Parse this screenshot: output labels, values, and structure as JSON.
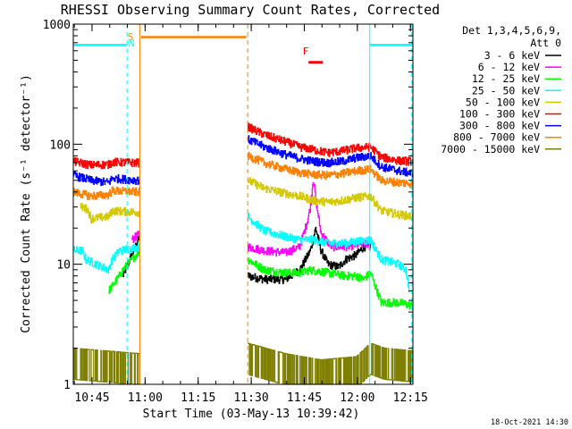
{
  "chart_data": {
    "type": "line",
    "title": "RHESSI Observing Summary Count Rates, Corrected",
    "xlabel": "Start Time (03-May-13 10:39:42)",
    "ylabel": "Corrected Count Rate (s⁻¹ detector⁻¹)",
    "yscale": "log",
    "ylim": [
      1,
      1000
    ],
    "xlim_minutes": [
      0,
      96
    ],
    "x_ticks": [
      {
        "t": 5.3,
        "label": "10:45"
      },
      {
        "t": 20.3,
        "label": "11:00"
      },
      {
        "t": 35.3,
        "label": "11:15"
      },
      {
        "t": 50.3,
        "label": "11:30"
      },
      {
        "t": 65.3,
        "label": "11:45"
      },
      {
        "t": 80.3,
        "label": "12:00"
      },
      {
        "t": 95.3,
        "label": "12:15"
      }
    ],
    "y_ticks": [
      {
        "v": 1,
        "label": "1"
      },
      {
        "v": 10,
        "label": "10"
      },
      {
        "v": 100,
        "label": "100"
      },
      {
        "v": 1000,
        "label": "1000"
      }
    ],
    "legend": {
      "placement": "right",
      "header": [
        "Det 1,3,4,5,6,9,",
        "Att 0"
      ],
      "entries": [
        {
          "label": "3 - 6 keV",
          "color": "#000000"
        },
        {
          "label": "6 - 12 keV",
          "color": "#ff00ff"
        },
        {
          "label": "12 - 25 keV",
          "color": "#00ff00"
        },
        {
          "label": "25 - 50 keV",
          "color": "#00ffff"
        },
        {
          "label": "50 - 100 keV",
          "color": "#d4c800"
        },
        {
          "label": "100 - 300 keV",
          "color": "#ff0000"
        },
        {
          "label": "300 - 800 keV",
          "color": "#0000ff"
        },
        {
          "label": "800 - 7000 keV",
          "color": "#ff8000"
        },
        {
          "label": "7000 - 15000 keV",
          "color": "#808000"
        }
      ]
    },
    "annotations": {
      "saa_label": "S",
      "night_label": "N",
      "flare_label": "F",
      "timestamp": "18-Oct-2021 14:30"
    },
    "intervals": {
      "night": [
        [
          0,
          15.2
        ],
        [
          83.8,
          96
        ]
      ],
      "saa": [
        [
          18.8,
          49.3
        ]
      ],
      "flare": [
        [
          66.5,
          70.5
        ]
      ],
      "gaps": [
        [
          18.8,
          49.3
        ]
      ],
      "segments": [
        [
          0,
          18.8
        ],
        [
          49.3,
          96
        ]
      ]
    },
    "series": [
      {
        "name": "3 - 6 keV",
        "color": "#000000",
        "profile": [
          [
            14,
            8
          ],
          [
            17,
            13
          ],
          [
            18.8,
            17
          ],
          [
            49.3,
            8
          ],
          [
            54,
            7.5
          ],
          [
            60,
            7.5
          ],
          [
            64,
            9
          ],
          [
            67,
            13
          ],
          [
            68.5,
            20
          ],
          [
            70,
            13
          ],
          [
            72,
            10
          ],
          [
            75,
            9.5
          ],
          [
            77,
            11
          ],
          [
            80,
            12
          ],
          [
            82,
            14
          ],
          [
            84,
            14
          ]
        ]
      },
      {
        "name": "6 - 12 keV",
        "color": "#ff00ff",
        "profile": [
          [
            16.5,
            16
          ],
          [
            18.8,
            18
          ],
          [
            49.3,
            14
          ],
          [
            54,
            13
          ],
          [
            60,
            12.5
          ],
          [
            64,
            14
          ],
          [
            66,
            22
          ],
          [
            67,
            30
          ],
          [
            67.8,
            52
          ],
          [
            68.5,
            35
          ],
          [
            70,
            18
          ],
          [
            73,
            14
          ],
          [
            77,
            14
          ],
          [
            80,
            14.5
          ],
          [
            84,
            15
          ]
        ]
      },
      {
        "name": "12 - 25 keV",
        "color": "#00ff00",
        "profile": [
          [
            10,
            6
          ],
          [
            13,
            8
          ],
          [
            14,
            9
          ],
          [
            18.8,
            13
          ],
          [
            49.3,
            11
          ],
          [
            54,
            9
          ],
          [
            60,
            8.5
          ],
          [
            64,
            8.5
          ],
          [
            67,
            9
          ],
          [
            72,
            8.5
          ],
          [
            77,
            8
          ],
          [
            80,
            8
          ],
          [
            82,
            7.5
          ],
          [
            84,
            8.5
          ],
          [
            87,
            4.8
          ],
          [
            92,
            4.8
          ],
          [
            96,
            4.5
          ]
        ]
      },
      {
        "name": "25 - 50 keV",
        "color": "#00ffff",
        "profile": [
          [
            0,
            13
          ],
          [
            2.5,
            13
          ],
          [
            3.5,
            11
          ],
          [
            10,
            9
          ],
          [
            11,
            11
          ],
          [
            13,
            13
          ],
          [
            18.8,
            14
          ],
          [
            49.3,
            25
          ],
          [
            54,
            19
          ],
          [
            60,
            17
          ],
          [
            64,
            16
          ],
          [
            68,
            16
          ],
          [
            72,
            15
          ],
          [
            77,
            15
          ],
          [
            80,
            15.5
          ],
          [
            84,
            16
          ],
          [
            87,
            11
          ],
          [
            92,
            10
          ],
          [
            94,
            9
          ],
          [
            95,
            6
          ]
        ]
      },
      {
        "name": "50 - 100 keV",
        "color": "#d4c800",
        "profile": [
          [
            2,
            30
          ],
          [
            4,
            29
          ],
          [
            5,
            24
          ],
          [
            10,
            25
          ],
          [
            11,
            28
          ],
          [
            18.8,
            27
          ],
          [
            49.3,
            50
          ],
          [
            54,
            43
          ],
          [
            60,
            39
          ],
          [
            64,
            37
          ],
          [
            68,
            34
          ],
          [
            72,
            33
          ],
          [
            76,
            34
          ],
          [
            80,
            36
          ],
          [
            84,
            37
          ],
          [
            87,
            28
          ],
          [
            92,
            26
          ],
          [
            96,
            25
          ]
        ]
      },
      {
        "name": "100 - 300 keV",
        "color": "#ff0000",
        "profile": [
          [
            0,
            72
          ],
          [
            5,
            67
          ],
          [
            10,
            68
          ],
          [
            11,
            71
          ],
          [
            18.8,
            70
          ],
          [
            49.3,
            140
          ],
          [
            54,
            120
          ],
          [
            60,
            105
          ],
          [
            64,
            95
          ],
          [
            68,
            90
          ],
          [
            72,
            85
          ],
          [
            76,
            88
          ],
          [
            80,
            93
          ],
          [
            84,
            95
          ],
          [
            87,
            78
          ],
          [
            92,
            73
          ],
          [
            96,
            72
          ]
        ]
      },
      {
        "name": "300 - 800 keV",
        "color": "#0000ff",
        "profile": [
          [
            0,
            55
          ],
          [
            5,
            50
          ],
          [
            10,
            48
          ],
          [
            11,
            52
          ],
          [
            18.8,
            50
          ],
          [
            49.3,
            110
          ],
          [
            54,
            95
          ],
          [
            60,
            82
          ],
          [
            64,
            76
          ],
          [
            68,
            72
          ],
          [
            72,
            70
          ],
          [
            76,
            72
          ],
          [
            80,
            77
          ],
          [
            84,
            80
          ],
          [
            87,
            65
          ],
          [
            92,
            60
          ],
          [
            96,
            57
          ]
        ]
      },
      {
        "name": "800 - 7000 keV",
        "color": "#ff8000",
        "profile": [
          [
            0,
            40
          ],
          [
            5,
            37
          ],
          [
            10,
            38
          ],
          [
            11,
            41
          ],
          [
            18.8,
            40
          ],
          [
            49.3,
            80
          ],
          [
            54,
            70
          ],
          [
            60,
            62
          ],
          [
            64,
            58
          ],
          [
            68,
            56
          ],
          [
            72,
            55
          ],
          [
            76,
            57
          ],
          [
            80,
            60
          ],
          [
            84,
            62
          ],
          [
            87,
            50
          ],
          [
            92,
            48
          ],
          [
            96,
            47
          ]
        ]
      },
      {
        "name": "7000 - 15000 keV",
        "color": "#808000",
        "profile": [
          [
            0,
            2
          ],
          [
            18.8,
            1.8
          ],
          [
            49.3,
            2.2
          ],
          [
            60,
            1.8
          ],
          [
            70,
            1.6
          ],
          [
            80,
            1.7
          ],
          [
            84,
            2.2
          ],
          [
            88,
            2.0
          ],
          [
            96,
            1.9
          ]
        ]
      }
    ],
    "state_lines": [
      {
        "name": "night-state",
        "color": "#00ffff",
        "points": [
          [
            0,
            670
          ],
          [
            15.2,
            670
          ]
        ]
      },
      {
        "name": "night-state",
        "color": "#00ffff",
        "points": [
          [
            83.8,
            670
          ],
          [
            96,
            670
          ]
        ]
      },
      {
        "name": "saa-state",
        "color": "#ff8000",
        "points": [
          [
            19.2,
            780
          ],
          [
            48.9,
            780
          ]
        ]
      },
      {
        "name": "flare-state",
        "color": "#ff0000",
        "points": [
          [
            66.5,
            480
          ],
          [
            70.5,
            480
          ]
        ]
      }
    ]
  }
}
